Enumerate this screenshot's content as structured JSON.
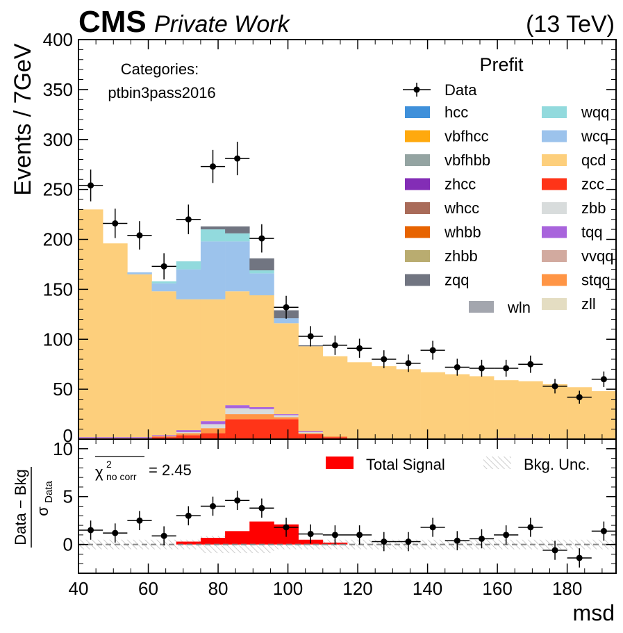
{
  "header": {
    "experiment": "CMS",
    "subtitle": "Private Work",
    "energy": "(13 TeV)"
  },
  "categories_box": {
    "title": "Categories:",
    "name": "ptbin3pass2016"
  },
  "legend": {
    "title": "Prefit",
    "data_label": "Data",
    "col1": [
      {
        "label": "hcc",
        "color": "#3f90da"
      },
      {
        "label": "vbfhcc",
        "color": "#ffa90e"
      },
      {
        "label": "vbfhbb",
        "color": "#94a4a2"
      },
      {
        "label": "zhcc",
        "color": "#832db6"
      },
      {
        "label": "whcc",
        "color": "#a96b59"
      },
      {
        "label": "whbb",
        "color": "#e76300"
      },
      {
        "label": "zhbb",
        "color": "#b9ac70"
      },
      {
        "label": "zqq",
        "color": "#717581"
      }
    ],
    "col2": [
      {
        "label": "wqq",
        "color": "#92dadd"
      },
      {
        "label": "wcq",
        "color": "#9cc3ec"
      },
      {
        "label": "qcd",
        "color": "#fdcf7c"
      },
      {
        "label": "zcc",
        "color": "#ff3418"
      },
      {
        "label": "zbb",
        "color": "#d8dcdc"
      },
      {
        "label": "tqq",
        "color": "#a864dc"
      },
      {
        "label": "vvqq",
        "color": "#d2aa9f"
      },
      {
        "label": "stqq",
        "color": "#ff9545"
      },
      {
        "label": "zll",
        "color": "#e4ddc2"
      }
    ],
    "extra": {
      "label": "wln",
      "color": "#a3a6ae"
    }
  },
  "ratio": {
    "chi2_symbol": "χ",
    "chi2_sup": "2",
    "chi2_sub": "no corr",
    "chi2_value": "= 2.45",
    "signal_label": "Total Signal",
    "signal_color": "#ff0000",
    "unc_label": "Bkg. Unc.",
    "ylabel_num": "Data − Bkg",
    "ylabel_den": "σ",
    "ylabel_den_sub": "Data"
  },
  "chart_data": {
    "type": "bar",
    "xlabel": "msd",
    "ylabel": "Events / 7GeV",
    "xlim": [
      40,
      194
    ],
    "ylim": [
      0,
      400
    ],
    "ratio_ylim": [
      -3,
      11
    ],
    "bin_edges": [
      40,
      47,
      54,
      61,
      68,
      75,
      82,
      89,
      96,
      103,
      110,
      117,
      124,
      131,
      138,
      145,
      152,
      159,
      166,
      173,
      180,
      187,
      194
    ],
    "x_ticks": [
      40,
      60,
      80,
      100,
      120,
      140,
      160,
      180
    ],
    "y_ticks": [
      50,
      100,
      150,
      200,
      250,
      300,
      350,
      400
    ],
    "ratio_y_ticks": [
      0,
      5,
      10
    ],
    "stack": [
      {
        "name": "zcc",
        "color": "#ff3418",
        "values": [
          0,
          0,
          0,
          2,
          4,
          6,
          20,
          20,
          20,
          5,
          2,
          0,
          0,
          0,
          0,
          0,
          0,
          0,
          0,
          0,
          0,
          0
        ]
      },
      {
        "name": "stqq",
        "color": "#ff9545",
        "values": [
          1,
          1,
          1,
          1,
          2,
          5,
          5,
          5,
          2,
          1,
          1,
          0,
          0,
          0,
          0,
          0,
          0,
          0,
          0,
          0,
          0,
          0
        ]
      },
      {
        "name": "zbb",
        "color": "#d8dcdc",
        "values": [
          0,
          0,
          0,
          0,
          1,
          4,
          6,
          5,
          2,
          1,
          0,
          0,
          0,
          0,
          0,
          0,
          0,
          0,
          0,
          0,
          0,
          0
        ]
      },
      {
        "name": "tqq",
        "color": "#a864dc",
        "values": [
          1,
          1,
          1,
          1,
          2,
          3,
          3,
          2,
          1,
          1,
          0,
          0,
          0,
          0,
          0,
          0,
          0,
          1,
          1,
          0,
          0,
          0
        ]
      },
      {
        "name": "qcd",
        "color": "#fdcf7c",
        "values": [
          228,
          194,
          163,
          144,
          131,
          122,
          114,
          112,
          91,
          85,
          80,
          77,
          73,
          70,
          67,
          65,
          63,
          58,
          57,
          55,
          52,
          48
        ]
      },
      {
        "name": "wcq",
        "color": "#9cc3ec",
        "values": [
          0,
          0,
          2,
          8,
          30,
          58,
          50,
          22,
          5,
          0,
          0,
          0,
          0,
          0,
          0,
          0,
          0,
          0,
          0,
          0,
          0,
          0
        ]
      },
      {
        "name": "wqq",
        "color": "#92dadd",
        "values": [
          0,
          0,
          0,
          2,
          8,
          12,
          8,
          3,
          0,
          0,
          0,
          0,
          0,
          0,
          0,
          0,
          0,
          0,
          0,
          0,
          0,
          0
        ]
      },
      {
        "name": "zqq",
        "color": "#717581",
        "values": [
          0,
          0,
          0,
          0,
          0,
          3,
          7,
          12,
          8,
          1,
          0,
          0,
          0,
          0,
          0,
          0,
          0,
          0,
          0,
          0,
          0,
          0
        ]
      }
    ],
    "data_points": {
      "x": [
        43.5,
        50.5,
        57.5,
        64.5,
        71.5,
        78.5,
        85.5,
        92.5,
        99.5,
        106.5,
        113.5,
        120.5,
        127.5,
        134.5,
        141.5,
        148.5,
        155.5,
        162.5,
        169.5,
        176.5,
        183.5,
        190.5
      ],
      "y": [
        254,
        216,
        204,
        173,
        220,
        273,
        281,
        201,
        132,
        103,
        94,
        91,
        80,
        76,
        89,
        72,
        71,
        71,
        75,
        53,
        42,
        60
      ]
    },
    "ratio_points": [
      1.5,
      1.2,
      2.5,
      0.9,
      3.0,
      4.0,
      4.6,
      3.8,
      1.8,
      1.1,
      1.0,
      1.0,
      0.3,
      0.3,
      1.8,
      0.4,
      0.6,
      1.0,
      1.8,
      -0.6,
      -1.4,
      1.4
    ],
    "ratio_signal": [
      0,
      0,
      0,
      0,
      0.3,
      0.7,
      1.4,
      2.4,
      2.1,
      0.5,
      0.2,
      0,
      0,
      0,
      0,
      0,
      0,
      0,
      0,
      0,
      0,
      0
    ]
  }
}
